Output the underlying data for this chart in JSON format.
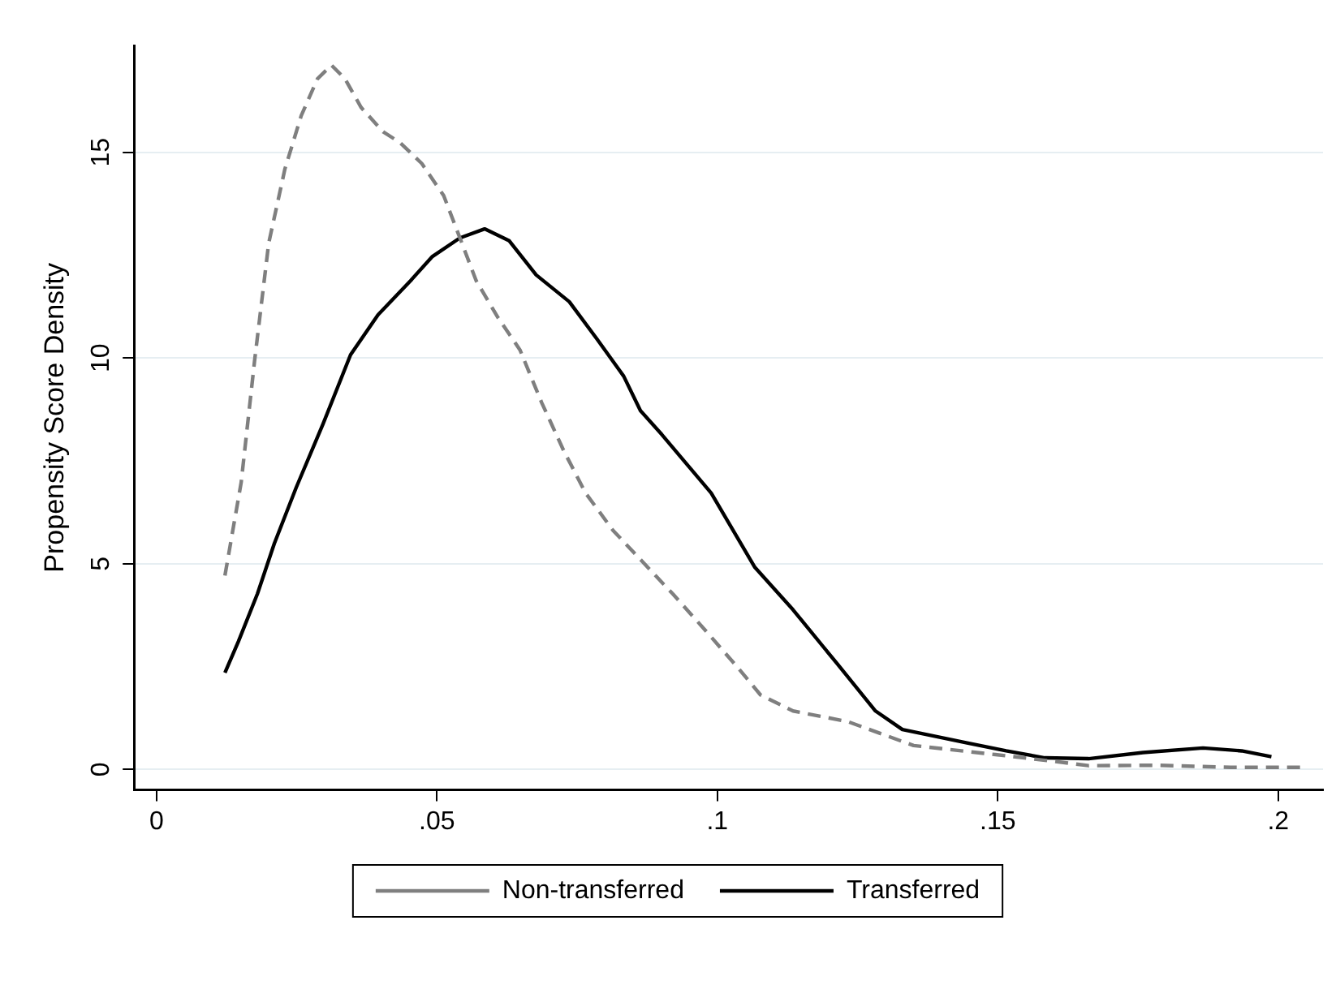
{
  "chart_data": {
    "type": "line",
    "ylabel": "Propensity Score Density",
    "xlim": [
      -0.004,
      0.208
    ],
    "ylim": [
      -0.5,
      17.6
    ],
    "xticks": [
      0,
      {
        "value": 0.05,
        "label": ".05"
      },
      {
        "value": 0.1,
        "label": ".1"
      },
      {
        "value": 0.15,
        "label": ".15"
      },
      {
        "value": 0.2,
        "label": ".2"
      }
    ],
    "yticks": [
      0,
      5,
      10,
      15
    ],
    "grid": "y",
    "legend": "bottom",
    "marker": "none",
    "series": [
      {
        "name": "Non-transferred",
        "color": "#7f7f7f",
        "line_style": "dashed",
        "x": [
          0.0122,
          0.0151,
          0.0175,
          0.02,
          0.0229,
          0.0258,
          0.0287,
          0.0312,
          0.0336,
          0.0365,
          0.0404,
          0.0434,
          0.0473,
          0.0512,
          0.0541,
          0.057,
          0.0609,
          0.0648,
          0.0687,
          0.0726,
          0.0765,
          0.0814,
          0.0863,
          0.0921,
          0.098,
          0.1038,
          0.1077,
          0.1135,
          0.1233,
          0.135,
          0.1496,
          0.1603,
          0.1662,
          0.1788,
          0.1915,
          0.2042
        ],
        "values": [
          4.71,
          6.98,
          9.95,
          12.79,
          14.6,
          15.89,
          16.79,
          17.12,
          16.79,
          16.09,
          15.5,
          15.24,
          14.73,
          13.95,
          12.92,
          11.88,
          10.98,
          10.2,
          8.91,
          7.75,
          6.72,
          5.81,
          5.1,
          4.26,
          3.36,
          2.45,
          1.81,
          1.42,
          1.16,
          0.58,
          0.36,
          0.19,
          0.09,
          0.1,
          0.05,
          0.05
        ]
      },
      {
        "name": "Transferred",
        "color": "#000000",
        "line_style": "solid",
        "x": [
          0.0122,
          0.0146,
          0.018,
          0.021,
          0.0249,
          0.0297,
          0.0346,
          0.0395,
          0.0453,
          0.0492,
          0.0541,
          0.0585,
          0.0629,
          0.0677,
          0.0736,
          0.0785,
          0.0833,
          0.0863,
          0.0901,
          0.0989,
          0.1067,
          0.1135,
          0.1213,
          0.1282,
          0.133,
          0.1447,
          0.1515,
          0.1584,
          0.1662,
          0.1759,
          0.1866,
          0.1935,
          0.1988
        ],
        "values": [
          2.35,
          3.11,
          4.27,
          5.49,
          6.85,
          8.4,
          10.08,
          11.05,
          11.88,
          12.47,
          12.92,
          13.14,
          12.85,
          12.02,
          11.37,
          10.47,
          9.56,
          8.72,
          8.14,
          6.72,
          4.91,
          3.88,
          2.58,
          1.42,
          0.97,
          0.64,
          0.45,
          0.28,
          0.26,
          0.41,
          0.52,
          0.45,
          0.31
        ]
      }
    ]
  }
}
